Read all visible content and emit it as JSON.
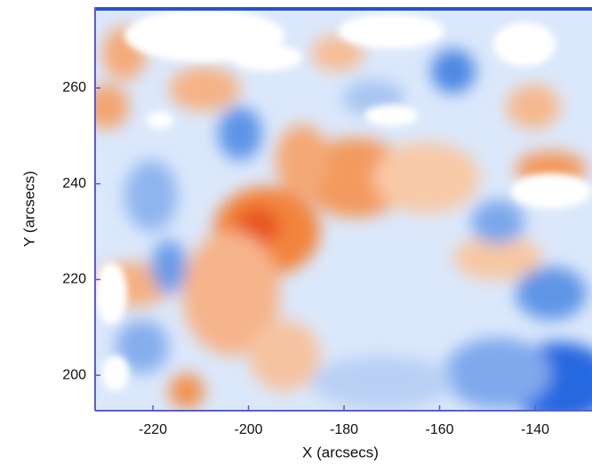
{
  "chart_data": {
    "type": "image",
    "xlabel": "X (arcsecs)",
    "ylabel": "Y (arcsecs)",
    "xlim": [
      -232.1,
      -128.1
    ],
    "ylim": [
      192.6,
      276.9
    ],
    "xticks": [
      -220,
      -200,
      -180,
      -160,
      -140
    ],
    "yticks": [
      200,
      220,
      240,
      260
    ],
    "axis_color": "#5b5bd6"
  }
}
